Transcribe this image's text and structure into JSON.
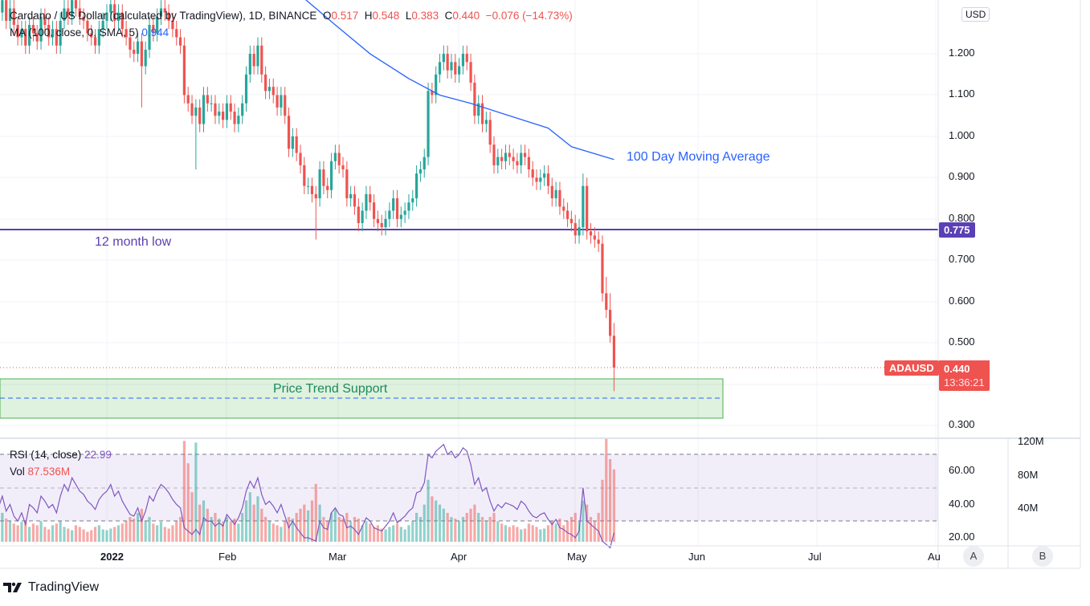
{
  "header": {
    "title": "Cardano / US Dollar (calculated by TradingView), 1D, BINANCE",
    "o_label": "O",
    "o": "0.517",
    "h_label": "H",
    "h": "0.548",
    "l_label": "L",
    "l": "0.383",
    "c_label": "C",
    "c": "0.440",
    "change": "−0.076 (−14.73%)",
    "ma_label": "MA (100, close, 0, SMA, 5)",
    "ma_value": "0.944"
  },
  "rsi_legend": {
    "label": "RSI (14, close)",
    "value": "22.99"
  },
  "vol_legend": {
    "label": "Vol",
    "value": "87.536M"
  },
  "currency": "USD",
  "price_tag": {
    "symbol": "ADAUSD",
    "price": "0.440",
    "countdown": "13:36:21"
  },
  "level_tag": "0.775",
  "annotations": {
    "ma": "100 Day Moving Average",
    "low": "12 month low",
    "support": "Price Trend Support"
  },
  "price_axis": [
    "1.200",
    "1.100",
    "1.000",
    "0.900",
    "0.800",
    "0.700",
    "0.600",
    "0.500",
    "0.300"
  ],
  "rsi_axis": [
    "60.00",
    "40.00",
    "20.00"
  ],
  "vol_axis": [
    "120M",
    "80M",
    "40M"
  ],
  "time_axis": [
    "2022",
    "Feb",
    "Mar",
    "Apr",
    "May",
    "Jun",
    "Jul",
    "Au"
  ],
  "scale_buttons": [
    "A",
    "B"
  ],
  "logo": "TradingView",
  "colors": {
    "up": "#26a69a",
    "down": "#ef5350",
    "ma": "#2962ff",
    "low_line": "#5b3fb5",
    "support": "#4caf50"
  },
  "chart_data": {
    "type": "candlestick",
    "first_date": "2021-12-04",
    "interval": "1D",
    "open": [
      1.32,
      1.3,
      1.33,
      1.28,
      1.31,
      1.27,
      1.24,
      1.26,
      1.22,
      1.27,
      1.25,
      1.23,
      1.29,
      1.27,
      1.24,
      1.26,
      1.22,
      1.28,
      1.31,
      1.29,
      1.33,
      1.31,
      1.29,
      1.28,
      1.25,
      1.24,
      1.22,
      1.26,
      1.28,
      1.3,
      1.32,
      1.28,
      1.3,
      1.26,
      1.24,
      1.21,
      1.2,
      1.23,
      1.17,
      1.21,
      1.27,
      1.25,
      1.29,
      1.31,
      1.3,
      1.28,
      1.26,
      1.24,
      1.22,
      1.1,
      1.08,
      1.05,
      1.07,
      1.03,
      1.1,
      1.08,
      1.08,
      1.05,
      1.06,
      1.04,
      1.08,
      1.06,
      1.03,
      1.05,
      1.08,
      1.15,
      1.2,
      1.17,
      1.22,
      1.15,
      1.11,
      1.12,
      1.1,
      1.07,
      1.1,
      1.05,
      0.97,
      1.0,
      0.96,
      0.93,
      0.88,
      0.88,
      0.86,
      0.85,
      0.92,
      0.88,
      0.87,
      0.94,
      0.96,
      0.93,
      0.92,
      0.85,
      0.86,
      0.83,
      0.79,
      0.82,
      0.86,
      0.84,
      0.8,
      0.79,
      0.78,
      0.8,
      0.82,
      0.85,
      0.8,
      0.81,
      0.82,
      0.84,
      0.85,
      0.91,
      0.92,
      0.95,
      1.11,
      1.1,
      1.15,
      1.18,
      1.2,
      1.16,
      1.18,
      1.15,
      1.17,
      1.2,
      1.18,
      1.13,
      1.05,
      1.08,
      1.03,
      1.04,
      0.98,
      0.93,
      0.95,
      0.94,
      0.96,
      0.95,
      0.94,
      0.93,
      0.96,
      0.95,
      0.92,
      0.9,
      0.89,
      0.9,
      0.91,
      0.88,
      0.85,
      0.87,
      0.83,
      0.82,
      0.8,
      0.79,
      0.76,
      0.78,
      0.88,
      0.77,
      0.76,
      0.75,
      0.74,
      0.62,
      0.58,
      0.517
    ],
    "high": [
      1.34,
      1.35,
      1.35,
      1.33,
      1.33,
      1.29,
      1.28,
      1.28,
      1.29,
      1.29,
      1.27,
      1.31,
      1.31,
      1.29,
      1.28,
      1.28,
      1.3,
      1.33,
      1.33,
      1.35,
      1.35,
      1.33,
      1.31,
      1.3,
      1.27,
      1.26,
      1.28,
      1.3,
      1.32,
      1.34,
      1.34,
      1.32,
      1.32,
      1.28,
      1.26,
      1.23,
      1.25,
      1.25,
      1.23,
      1.29,
      1.29,
      1.31,
      1.33,
      1.33,
      1.32,
      1.3,
      1.28,
      1.26,
      1.24,
      1.12,
      1.1,
      1.09,
      1.09,
      1.12,
      1.12,
      1.1,
      1.1,
      1.08,
      1.08,
      1.1,
      1.1,
      1.08,
      1.07,
      1.1,
      1.17,
      1.22,
      1.22,
      1.24,
      1.24,
      1.17,
      1.14,
      1.14,
      1.12,
      1.12,
      1.12,
      1.07,
      1.02,
      1.02,
      0.98,
      0.95,
      0.9,
      0.9,
      0.88,
      0.94,
      0.94,
      0.9,
      0.96,
      0.98,
      0.98,
      0.95,
      0.94,
      0.88,
      0.88,
      0.85,
      0.84,
      0.88,
      0.88,
      0.86,
      0.82,
      0.81,
      0.82,
      0.84,
      0.87,
      0.87,
      0.83,
      0.84,
      0.86,
      0.87,
      0.93,
      0.94,
      0.97,
      1.13,
      1.13,
      1.17,
      1.2,
      1.22,
      1.22,
      1.2,
      1.2,
      1.19,
      1.22,
      1.22,
      1.2,
      1.15,
      1.1,
      1.1,
      1.06,
      1.06,
      1.0,
      0.97,
      0.97,
      0.98,
      0.98,
      0.97,
      0.96,
      0.98,
      0.98,
      0.97,
      0.94,
      0.92,
      0.92,
      0.93,
      0.93,
      0.9,
      0.89,
      0.89,
      0.85,
      0.84,
      0.82,
      0.81,
      0.8,
      0.91,
      0.9,
      0.79,
      0.78,
      0.77,
      0.76,
      0.66,
      0.62,
      0.548
    ],
    "low": [
      1.28,
      1.28,
      1.26,
      1.26,
      1.25,
      1.22,
      1.22,
      1.2,
      1.2,
      1.23,
      1.21,
      1.21,
      1.25,
      1.22,
      1.22,
      1.2,
      1.2,
      1.26,
      1.27,
      1.27,
      1.29,
      1.27,
      1.26,
      1.23,
      1.22,
      1.2,
      1.2,
      1.24,
      1.26,
      1.28,
      1.26,
      1.26,
      1.24,
      1.22,
      1.19,
      1.18,
      1.18,
      1.07,
      1.15,
      1.19,
      1.23,
      1.23,
      1.27,
      1.28,
      1.26,
      1.24,
      1.22,
      1.2,
      1.08,
      1.06,
      1.03,
      0.92,
      1.01,
      1.01,
      1.06,
      1.06,
      1.03,
      1.03,
      1.02,
      1.02,
      1.04,
      1.01,
      1.01,
      1.03,
      1.06,
      1.13,
      1.15,
      1.15,
      1.13,
      1.09,
      1.09,
      1.08,
      1.05,
      1.05,
      1.03,
      0.95,
      0.95,
      0.94,
      0.91,
      0.86,
      0.86,
      0.84,
      0.75,
      0.83,
      0.86,
      0.85,
      0.85,
      0.92,
      0.91,
      0.9,
      0.83,
      0.83,
      0.81,
      0.77,
      0.77,
      0.8,
      0.82,
      0.78,
      0.77,
      0.76,
      0.76,
      0.78,
      0.8,
      0.78,
      0.78,
      0.79,
      0.8,
      0.82,
      0.83,
      0.89,
      0.9,
      0.93,
      1.08,
      1.08,
      1.13,
      1.16,
      1.14,
      1.14,
      1.13,
      1.13,
      1.15,
      1.16,
      1.11,
      1.03,
      1.03,
      1.01,
      1.01,
      0.96,
      0.91,
      0.91,
      0.92,
      0.92,
      0.93,
      0.92,
      0.91,
      0.91,
      0.93,
      0.9,
      0.88,
      0.87,
      0.87,
      0.88,
      0.86,
      0.83,
      0.83,
      0.81,
      0.8,
      0.78,
      0.77,
      0.74,
      0.74,
      0.76,
      0.75,
      0.74,
      0.73,
      0.72,
      0.6,
      0.56,
      0.5,
      0.383
    ],
    "close": [
      1.3,
      1.33,
      1.28,
      1.31,
      1.27,
      1.24,
      1.26,
      1.22,
      1.27,
      1.25,
      1.23,
      1.29,
      1.27,
      1.24,
      1.26,
      1.22,
      1.28,
      1.31,
      1.29,
      1.33,
      1.31,
      1.29,
      1.28,
      1.25,
      1.24,
      1.22,
      1.26,
      1.28,
      1.3,
      1.32,
      1.28,
      1.3,
      1.26,
      1.24,
      1.21,
      1.2,
      1.23,
      1.17,
      1.21,
      1.27,
      1.25,
      1.29,
      1.31,
      1.3,
      1.28,
      1.26,
      1.24,
      1.22,
      1.1,
      1.08,
      1.05,
      1.07,
      1.03,
      1.1,
      1.08,
      1.08,
      1.05,
      1.06,
      1.04,
      1.08,
      1.06,
      1.03,
      1.05,
      1.08,
      1.15,
      1.2,
      1.17,
      1.22,
      1.15,
      1.11,
      1.12,
      1.1,
      1.07,
      1.1,
      1.05,
      0.97,
      1.0,
      0.96,
      0.93,
      0.88,
      0.88,
      0.86,
      0.85,
      0.92,
      0.88,
      0.87,
      0.94,
      0.96,
      0.93,
      0.92,
      0.85,
      0.86,
      0.83,
      0.79,
      0.82,
      0.86,
      0.84,
      0.8,
      0.79,
      0.78,
      0.8,
      0.82,
      0.85,
      0.8,
      0.81,
      0.82,
      0.84,
      0.85,
      0.91,
      0.92,
      0.95,
      1.11,
      1.1,
      1.15,
      1.18,
      1.2,
      1.16,
      1.18,
      1.15,
      1.17,
      1.2,
      1.18,
      1.13,
      1.05,
      1.08,
      1.03,
      1.04,
      0.98,
      0.93,
      0.95,
      0.94,
      0.96,
      0.95,
      0.94,
      0.93,
      0.96,
      0.95,
      0.92,
      0.9,
      0.89,
      0.9,
      0.91,
      0.88,
      0.85,
      0.87,
      0.83,
      0.82,
      0.8,
      0.79,
      0.76,
      0.78,
      0.88,
      0.77,
      0.76,
      0.75,
      0.74,
      0.62,
      0.58,
      0.517,
      0.44
    ],
    "volume_m": [
      30,
      35,
      28,
      25,
      22,
      20,
      24,
      26,
      18,
      22,
      20,
      25,
      18,
      15,
      20,
      22,
      25,
      18,
      16,
      14,
      20,
      18,
      15,
      12,
      14,
      18,
      20,
      15,
      14,
      16,
      18,
      20,
      22,
      25,
      30,
      28,
      35,
      40,
      25,
      30,
      22,
      20,
      24,
      18,
      16,
      20,
      25,
      30,
      122,
      95,
      60,
      120,
      45,
      50,
      40,
      30,
      35,
      28,
      25,
      30,
      25,
      28,
      22,
      35,
      50,
      60,
      45,
      55,
      40,
      30,
      25,
      22,
      20,
      18,
      25,
      30,
      28,
      35,
      40,
      45,
      38,
      50,
      70,
      45,
      30,
      25,
      35,
      40,
      30,
      28,
      35,
      25,
      30,
      28,
      20,
      25,
      22,
      18,
      20,
      16,
      15,
      18,
      20,
      22,
      18,
      15,
      20,
      25,
      35,
      30,
      45,
      75,
      55,
      50,
      45,
      40,
      35,
      30,
      28,
      25,
      30,
      35,
      40,
      45,
      35,
      30,
      25,
      30,
      35,
      25,
      22,
      20,
      18,
      20,
      18,
      15,
      16,
      22,
      20,
      18,
      15,
      16,
      20,
      25,
      22,
      28,
      20,
      25,
      30,
      35,
      25,
      50,
      45,
      30,
      25,
      35,
      75,
      125,
      100,
      87.536
    ],
    "rsi": [
      38,
      45,
      36,
      40,
      33,
      30,
      35,
      28,
      40,
      38,
      35,
      45,
      42,
      38,
      40,
      35,
      45,
      52,
      48,
      56,
      52,
      48,
      46,
      42,
      40,
      37,
      43,
      46,
      48,
      52,
      45,
      48,
      42,
      38,
      34,
      33,
      38,
      30,
      36,
      45,
      42,
      48,
      52,
      50,
      47,
      43,
      40,
      38,
      26,
      24,
      22,
      25,
      22,
      32,
      30,
      30,
      27,
      29,
      27,
      34,
      31,
      28,
      32,
      38,
      48,
      54,
      50,
      56,
      46,
      40,
      42,
      39,
      35,
      40,
      33,
      26,
      30,
      26,
      23,
      20,
      20,
      19,
      18,
      30,
      26,
      25,
      35,
      38,
      34,
      33,
      26,
      27,
      25,
      22,
      27,
      32,
      30,
      26,
      25,
      24,
      27,
      30,
      35,
      29,
      31,
      33,
      36,
      38,
      47,
      48,
      53,
      70,
      68,
      72,
      74,
      76,
      70,
      72,
      68,
      70,
      74,
      72,
      64,
      52,
      56,
      48,
      50,
      42,
      36,
      40,
      38,
      41,
      40,
      39,
      37,
      42,
      40,
      36,
      33,
      32,
      34,
      35,
      31,
      28,
      31,
      26,
      25,
      23,
      22,
      20,
      24,
      50,
      30,
      28,
      26,
      24,
      18,
      16,
      14,
      22.99
    ],
    "ma100": [
      [
        "2022-02-19",
        1.35
      ],
      [
        "2022-03-01",
        1.27
      ],
      [
        "2022-03-10",
        1.2
      ],
      [
        "2022-03-20",
        1.14
      ],
      [
        "2022-03-28",
        1.1
      ],
      [
        "2022-04-05",
        1.08
      ],
      [
        "2022-04-15",
        1.05
      ],
      [
        "2022-04-25",
        1.02
      ],
      [
        "2022-05-01",
        0.975
      ],
      [
        "2022-05-12",
        0.944
      ]
    ],
    "horizontal_line": 0.775,
    "support_zone": [
      0.318,
      0.413
    ],
    "support_mid": 0.366,
    "rsi_bands": [
      30,
      50,
      70
    ],
    "ylim": [
      0.3,
      1.33
    ],
    "rsi_lim": [
      20,
      80
    ],
    "grid": true
  }
}
